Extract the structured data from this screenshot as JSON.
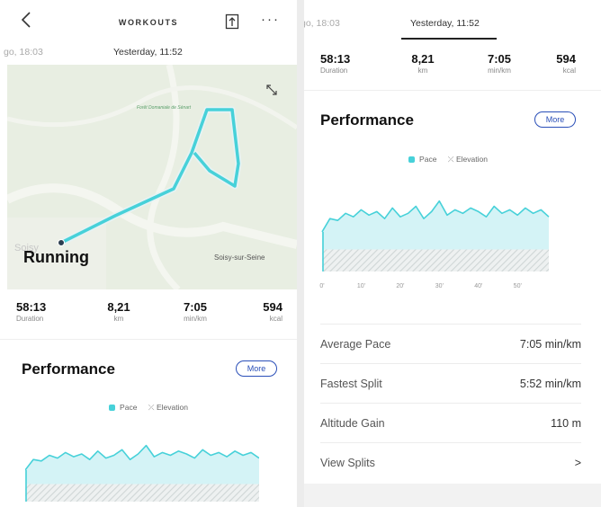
{
  "left": {
    "header": {
      "title": "WORKOUTS"
    },
    "date_tabs": {
      "previous": "go, 18:03",
      "current": "Yesterday, 11:52"
    },
    "map": {
      "forest_label": "Forêt Domaniale de Sénart",
      "sport": "Running",
      "town": "Soisy-sur-Seine",
      "bg_town": "Soisy"
    }
  },
  "right": {
    "date_tabs": {
      "previous": "go, 18:03",
      "current": "Yesterday, 11:52"
    }
  },
  "stats": [
    {
      "value": "58:13",
      "unit": "Duration"
    },
    {
      "value": "8,21",
      "unit": "km"
    },
    {
      "value": "7:05",
      "unit": "min/km"
    },
    {
      "value": "594",
      "unit": "kcal"
    }
  ],
  "performance": {
    "title": "Performance",
    "more_label": "More",
    "legend": {
      "pace": "Pace",
      "elevation": "Elevation"
    }
  },
  "chart_data": {
    "type": "area",
    "series": [
      {
        "name": "Pace",
        "x": [
          0,
          2,
          4,
          6,
          8,
          10,
          12,
          14,
          16,
          18,
          20,
          22,
          24,
          26,
          28,
          30,
          32,
          34,
          36,
          38,
          40,
          42,
          44,
          46,
          48,
          50,
          52,
          54,
          56,
          58
        ],
        "values": [
          45,
          60,
          58,
          66,
          62,
          70,
          64,
          68,
          60,
          72,
          62,
          66,
          74,
          60,
          68,
          80,
          64,
          70,
          66,
          72,
          68,
          62,
          74,
          66,
          70,
          64,
          72,
          66,
          70,
          62
        ]
      },
      {
        "name": "Elevation",
        "x": [
          0,
          58
        ],
        "values": [
          25,
          25
        ]
      }
    ],
    "x_ticks": [
      "0'",
      "10'",
      "20'",
      "30'",
      "40'",
      "50'"
    ],
    "xlim": [
      0,
      58
    ],
    "ylim": [
      0,
      100
    ],
    "colors": {
      "pace_line": "#47d1d9",
      "pace_fill": "#d4f3f6",
      "elevation": "#cfd6d6"
    }
  },
  "details": [
    {
      "label": "Average Pace",
      "value": "7:05 min/km"
    },
    {
      "label": "Fastest Split",
      "value": "5:52 min/km"
    },
    {
      "label": "Altitude Gain",
      "value": "110 m"
    },
    {
      "label": "View Splits",
      "value": ">"
    }
  ],
  "colors": {
    "accent": "#2a4fb8",
    "route": "#47d1d9",
    "map_bg": "#e8eee2"
  }
}
